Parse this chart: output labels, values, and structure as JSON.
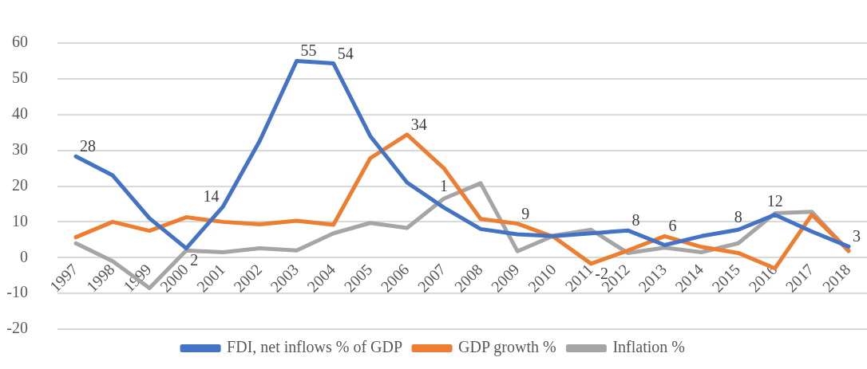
{
  "chart_data": {
    "type": "line",
    "categories": [
      "1997",
      "1998",
      "1999",
      "2000",
      "2001",
      "2002",
      "2003",
      "2004",
      "2005",
      "2006",
      "2007",
      "2008",
      "2009",
      "2010",
      "2011",
      "2012",
      "2013",
      "2014",
      "2015",
      "2016",
      "2017",
      "2018"
    ],
    "series": [
      {
        "name": "FDI, net inflows % of GDP",
        "color": "#4472c4",
        "values": [
          28.3,
          23,
          11,
          2.6,
          14.3,
          32.7,
          55,
          54.3,
          34,
          21,
          14,
          8,
          6.5,
          6,
          6.8,
          7.6,
          3.5,
          6,
          7.8,
          12,
          7.3,
          3.1
        ],
        "value_labels": [
          "28",
          null,
          null,
          null,
          "14",
          null,
          "55",
          "54",
          null,
          null,
          null,
          null,
          null,
          null,
          null,
          "8",
          null,
          null,
          "8",
          null,
          null,
          "3"
        ]
      },
      {
        "name": "GDP growth %",
        "color": "#ed7d31",
        "values": [
          5.7,
          10,
          7.5,
          11.3,
          10,
          9.3,
          10.3,
          9.2,
          27.8,
          34.4,
          25,
          10.8,
          9.5,
          5.7,
          -1.7,
          2,
          6,
          3,
          1.3,
          -3,
          12,
          2
        ],
        "value_labels": [
          null,
          null,
          null,
          null,
          null,
          null,
          null,
          null,
          null,
          "34",
          null,
          null,
          "9",
          null,
          "-2",
          null,
          "6",
          null,
          null,
          null,
          null,
          null
        ]
      },
      {
        "name": "Inflation %",
        "color": "#a5a5a5",
        "values": [
          4,
          -1,
          -8.5,
          2,
          1.5,
          2.6,
          2,
          6.8,
          9.7,
          8.3,
          16.5,
          20.8,
          1.8,
          6.2,
          7.8,
          1.3,
          2.8,
          1.5,
          4,
          12.4,
          12.8,
          1.8
        ],
        "value_labels": [
          null,
          null,
          null,
          "2",
          null,
          null,
          null,
          null,
          null,
          null,
          null,
          null,
          null,
          null,
          null,
          null,
          null,
          null,
          null,
          "12",
          null,
          null
        ]
      }
    ],
    "ylim": [
      -20,
      60
    ],
    "yticks": [
      -20,
      -10,
      0,
      10,
      20,
      30,
      40,
      50,
      60
    ],
    "grid": "y",
    "legend": "bottom",
    "marker": "none",
    "line_style": "solid",
    "annotations": [
      {
        "text": "1",
        "x": "2007",
        "y": 14
      }
    ]
  }
}
